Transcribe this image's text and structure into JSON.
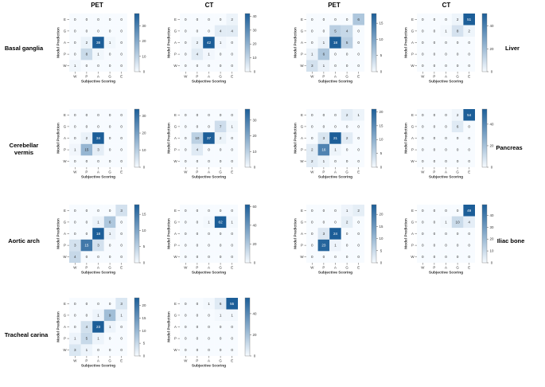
{
  "column_headers": [
    "PET",
    "CT",
    "PET",
    "CT"
  ],
  "region_labels": [
    {
      "text": "Basal ganglia"
    },
    {
      "text": "Cerebellar vermis"
    },
    {
      "text": "Aortic arch"
    },
    {
      "text": "Tracheal carina"
    },
    {
      "text": "Liver"
    },
    {
      "text": "Pancreas"
    },
    {
      "text": "Iliac bone"
    }
  ],
  "colors": {
    "low": "#f7fbff",
    "high": "#1c5e98",
    "text": "#333333"
  },
  "chart_data": [
    {
      "type": "heatmap",
      "id": "basal-ganglia-pet",
      "region": "Basal ganglia",
      "modality": "PET",
      "xlabel": "Subjective Scoring",
      "ylabel": "Model Prediction",
      "x_categories": [
        "W",
        "P",
        "A",
        "G",
        "E"
      ],
      "y_categories": [
        "E",
        "G",
        "A",
        "P",
        "W"
      ],
      "values": [
        [
          0,
          0,
          0,
          0,
          0
        ],
        [
          0,
          0,
          0,
          0,
          0
        ],
        [
          0,
          2,
          38,
          1,
          0
        ],
        [
          0,
          8,
          1,
          0,
          0
        ],
        [
          1,
          0,
          0,
          0,
          0
        ]
      ],
      "colorbar": {
        "max": 38,
        "ticks": [
          0,
          10,
          20,
          30
        ]
      }
    },
    {
      "type": "heatmap",
      "id": "basal-ganglia-ct",
      "region": "Basal ganglia",
      "modality": "CT",
      "xlabel": "Subjective Scoring",
      "ylabel": "Model Prediction",
      "x_categories": [
        "W",
        "P",
        "A",
        "G",
        "E"
      ],
      "y_categories": [
        "E",
        "G",
        "A",
        "P",
        "W"
      ],
      "values": [
        [
          0,
          0,
          0,
          0,
          2
        ],
        [
          0,
          0,
          0,
          4,
          4
        ],
        [
          0,
          2,
          42,
          1,
          0
        ],
        [
          0,
          4,
          1,
          0,
          0
        ],
        [
          0,
          0,
          0,
          0,
          0
        ]
      ],
      "colorbar": {
        "max": 42,
        "ticks": [
          0,
          10,
          20,
          30,
          40
        ]
      }
    },
    {
      "type": "heatmap",
      "id": "liver-pet",
      "region": "Liver",
      "modality": "PET",
      "xlabel": "Subjective Scoring",
      "ylabel": "Model Prediction",
      "x_categories": [
        "W",
        "P",
        "A",
        "G",
        "E"
      ],
      "y_categories": [
        "E",
        "G",
        "A",
        "P",
        "W"
      ],
      "values": [
        [
          0,
          0,
          0,
          0,
          6
        ],
        [
          0,
          0,
          5,
          4,
          0
        ],
        [
          0,
          1,
          18,
          5,
          0
        ],
        [
          1,
          6,
          0,
          0,
          0
        ],
        [
          3,
          1,
          0,
          0,
          0
        ]
      ],
      "colorbar": {
        "max": 18,
        "ticks": [
          0,
          5,
          10,
          15
        ]
      }
    },
    {
      "type": "heatmap",
      "id": "liver-ct",
      "region": "Liver",
      "modality": "CT",
      "xlabel": "Subjective Scoring",
      "ylabel": "Model Prediction",
      "x_categories": [
        "W",
        "P",
        "A",
        "G",
        "E"
      ],
      "y_categories": [
        "E",
        "G",
        "A",
        "P",
        "W"
      ],
      "values": [
        [
          0,
          0,
          0,
          2,
          51
        ],
        [
          0,
          0,
          1,
          8,
          2
        ],
        [
          0,
          0,
          0,
          0,
          0
        ],
        [
          0,
          0,
          0,
          0,
          0
        ],
        [
          0,
          0,
          0,
          0,
          0
        ]
      ],
      "colorbar": {
        "max": 51,
        "ticks": [
          0,
          20,
          40
        ]
      }
    },
    {
      "type": "heatmap",
      "id": "cerebellar-vermis-pet",
      "region": "Cerebellar vermis",
      "modality": "PET",
      "xlabel": "Subjective Scoring",
      "ylabel": "Model Prediction",
      "x_categories": [
        "W",
        "P",
        "A",
        "G",
        "E"
      ],
      "y_categories": [
        "E",
        "G",
        "A",
        "P",
        "W"
      ],
      "values": [
        [
          0,
          0,
          0,
          0,
          0
        ],
        [
          0,
          0,
          0,
          0,
          0
        ],
        [
          0,
          2,
          34,
          0,
          0
        ],
        [
          1,
          15,
          3,
          0,
          0
        ],
        [
          0,
          0,
          0,
          0,
          0
        ]
      ],
      "colorbar": {
        "max": 34,
        "ticks": [
          0,
          10,
          20,
          30
        ]
      }
    },
    {
      "type": "heatmap",
      "id": "cerebellar-vermis-ct",
      "region": "Cerebellar vermis",
      "modality": "CT",
      "xlabel": "Subjective Scoring",
      "ylabel": "Model Prediction",
      "x_categories": [
        "W",
        "P",
        "A",
        "G",
        "E"
      ],
      "y_categories": [
        "E",
        "G",
        "A",
        "P",
        "W"
      ],
      "values": [
        [
          0,
          0,
          0,
          0,
          0
        ],
        [
          0,
          0,
          0,
          7,
          1
        ],
        [
          0,
          10,
          37,
          2,
          0
        ],
        [
          0,
          4,
          0,
          0,
          0
        ],
        [
          0,
          0,
          0,
          0,
          0
        ]
      ],
      "colorbar": {
        "max": 37,
        "ticks": [
          0,
          10,
          20,
          30
        ]
      }
    },
    {
      "type": "heatmap",
      "id": "pancreas-pet",
      "region": "Pancreas",
      "modality": "PET",
      "xlabel": "Subjective Scoring",
      "ylabel": "Model Prediction",
      "x_categories": [
        "W",
        "P",
        "A",
        "G",
        "E"
      ],
      "y_categories": [
        "E",
        "G",
        "A",
        "P",
        "W"
      ],
      "values": [
        [
          0,
          0,
          0,
          2,
          1
        ],
        [
          0,
          0,
          0,
          0,
          0
        ],
        [
          0,
          3,
          21,
          2,
          0
        ],
        [
          2,
          16,
          1,
          0,
          0
        ],
        [
          2,
          1,
          0,
          0,
          0
        ]
      ],
      "colorbar": {
        "max": 21,
        "ticks": [
          0,
          5,
          10,
          15,
          20
        ]
      }
    },
    {
      "type": "heatmap",
      "id": "pancreas-ct",
      "region": "Pancreas",
      "modality": "CT",
      "xlabel": "Subjective Scoring",
      "ylabel": "Model Prediction",
      "x_categories": [
        "W",
        "P",
        "A",
        "G",
        "E"
      ],
      "y_categories": [
        "E",
        "G",
        "A",
        "P",
        "W"
      ],
      "values": [
        [
          0,
          0,
          0,
          2,
          54
        ],
        [
          0,
          0,
          0,
          6,
          0
        ],
        [
          0,
          0,
          0,
          0,
          0
        ],
        [
          0,
          0,
          0,
          0,
          0
        ],
        [
          0,
          0,
          0,
          0,
          0
        ]
      ],
      "colorbar": {
        "max": 54,
        "ticks": [
          0,
          20,
          40
        ]
      }
    },
    {
      "type": "heatmap",
      "id": "aortic-arch-pet",
      "region": "Aortic arch",
      "modality": "PET",
      "xlabel": "Subjective Scoring",
      "ylabel": "Model Prediction",
      "x_categories": [
        "W",
        "P",
        "A",
        "G",
        "E"
      ],
      "y_categories": [
        "E",
        "G",
        "A",
        "P",
        "W"
      ],
      "values": [
        [
          0,
          0,
          0,
          0,
          3
        ],
        [
          0,
          0,
          1,
          6,
          0
        ],
        [
          0,
          0,
          18,
          1,
          0
        ],
        [
          3,
          15,
          3,
          0,
          0
        ],
        [
          4,
          0,
          0,
          0,
          0
        ]
      ],
      "colorbar": {
        "max": 18,
        "ticks": [
          0,
          5,
          10,
          15
        ]
      }
    },
    {
      "type": "heatmap",
      "id": "aortic-arch-ct",
      "region": "Aortic arch",
      "modality": "CT",
      "xlabel": "Subjective Scoring",
      "ylabel": "Model Prediction",
      "x_categories": [
        "W",
        "P",
        "A",
        "G",
        "E"
      ],
      "y_categories": [
        "E",
        "G",
        "A",
        "P",
        "W"
      ],
      "values": [
        [
          0,
          0,
          0,
          0,
          0
        ],
        [
          0,
          0,
          1,
          62,
          1
        ],
        [
          0,
          0,
          0,
          0,
          0
        ],
        [
          0,
          0,
          0,
          0,
          0
        ],
        [
          0,
          0,
          0,
          0,
          0
        ]
      ],
      "colorbar": {
        "max": 62,
        "ticks": [
          0,
          20,
          40,
          60
        ]
      }
    },
    {
      "type": "heatmap",
      "id": "iliac-bone-pet",
      "region": "Iliac bone",
      "modality": "PET",
      "xlabel": "Subjective Scoring",
      "ylabel": "Model Prediction",
      "x_categories": [
        "W",
        "P",
        "A",
        "G",
        "E"
      ],
      "y_categories": [
        "E",
        "G",
        "A",
        "P",
        "W"
      ],
      "values": [
        [
          0,
          0,
          0,
          1,
          2
        ],
        [
          0,
          0,
          0,
          2,
          0
        ],
        [
          0,
          3,
          24,
          0,
          0
        ],
        [
          0,
          23,
          1,
          0,
          0
        ],
        [
          0,
          0,
          0,
          0,
          0
        ]
      ],
      "colorbar": {
        "max": 24,
        "ticks": [
          0,
          5,
          10,
          15,
          20,
          25
        ]
      }
    },
    {
      "type": "heatmap",
      "id": "iliac-bone-ct",
      "region": "Iliac bone",
      "modality": "CT",
      "xlabel": "Subjective Scoring",
      "ylabel": "Model Prediction",
      "x_categories": [
        "W",
        "P",
        "A",
        "G",
        "E"
      ],
      "y_categories": [
        "E",
        "G",
        "A",
        "P",
        "W"
      ],
      "values": [
        [
          0,
          0,
          0,
          0,
          49
        ],
        [
          0,
          0,
          1,
          10,
          4
        ],
        [
          0,
          0,
          0,
          0,
          0
        ],
        [
          0,
          0,
          0,
          0,
          0
        ],
        [
          0,
          0,
          0,
          0,
          0
        ]
      ],
      "colorbar": {
        "max": 49,
        "ticks": [
          0,
          10,
          20,
          30,
          40
        ]
      }
    },
    {
      "type": "heatmap",
      "id": "tracheal-carina-pet",
      "region": "Tracheal carina",
      "modality": "PET",
      "xlabel": "Subjective Scoring",
      "ylabel": "Model Prediction",
      "x_categories": [
        "W",
        "P",
        "A",
        "G",
        "E"
      ],
      "y_categories": [
        "E",
        "G",
        "A",
        "P",
        "W"
      ],
      "values": [
        [
          0,
          0,
          0,
          0,
          3
        ],
        [
          0,
          0,
          1,
          9,
          1
        ],
        [
          0,
          4,
          23,
          1,
          0
        ],
        [
          1,
          5,
          1,
          0,
          0
        ],
        [
          3,
          1,
          0,
          0,
          0
        ]
      ],
      "colorbar": {
        "max": 23,
        "ticks": [
          0,
          5,
          10,
          15,
          20,
          25
        ]
      }
    },
    {
      "type": "heatmap",
      "id": "tracheal-carina-ct",
      "region": "Tracheal carina",
      "modality": "CT",
      "xlabel": "Subjective Scoring",
      "ylabel": "Model Prediction",
      "x_categories": [
        "W",
        "P",
        "A",
        "G",
        "E"
      ],
      "y_categories": [
        "E",
        "G",
        "A",
        "P",
        "W"
      ],
      "values": [
        [
          0,
          0,
          1,
          6,
          55
        ],
        [
          0,
          0,
          0,
          1,
          1
        ],
        [
          0,
          0,
          0,
          0,
          0
        ],
        [
          0,
          0,
          0,
          0,
          0
        ],
        [
          0,
          0,
          0,
          0,
          0
        ]
      ],
      "colorbar": {
        "max": 55,
        "ticks": [
          0,
          20,
          40
        ]
      }
    }
  ]
}
